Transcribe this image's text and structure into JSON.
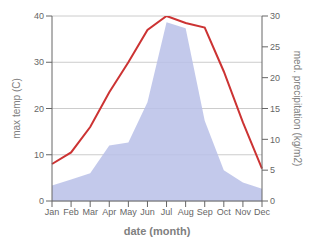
{
  "chart_data": {
    "type": "line",
    "categories": [
      "Jan",
      "Feb",
      "Mar",
      "Apr",
      "May",
      "Jun",
      "Jul",
      "Aug",
      "Sep",
      "Oct",
      "Nov",
      "Dec"
    ],
    "series": [
      {
        "type": "area",
        "axis": "y2",
        "color": "#b8c0e8",
        "values": [
          2.5,
          3.5,
          4.5,
          9.0,
          9.5,
          16.0,
          29.0,
          28.0,
          13.0,
          5.0,
          3.0,
          2.0
        ]
      },
      {
        "type": "line",
        "color": "#cc3333",
        "values": [
          8.0,
          10.5,
          16.0,
          23.5,
          30.0,
          37.0,
          40.0,
          38.5,
          37.5,
          28.0,
          17.0,
          7.0
        ]
      }
    ],
    "xlabel": "date (month)",
    "ylabel": "max temp (C)",
    "y2label": "med. precipitation (kg/m2)",
    "ylim": [
      0,
      40
    ],
    "yticks": [
      0,
      10,
      20,
      30,
      40
    ],
    "y2lim": [
      0,
      30
    ],
    "y2ticks": [
      0,
      5,
      10,
      15,
      20,
      25,
      30
    ],
    "grid": true
  }
}
